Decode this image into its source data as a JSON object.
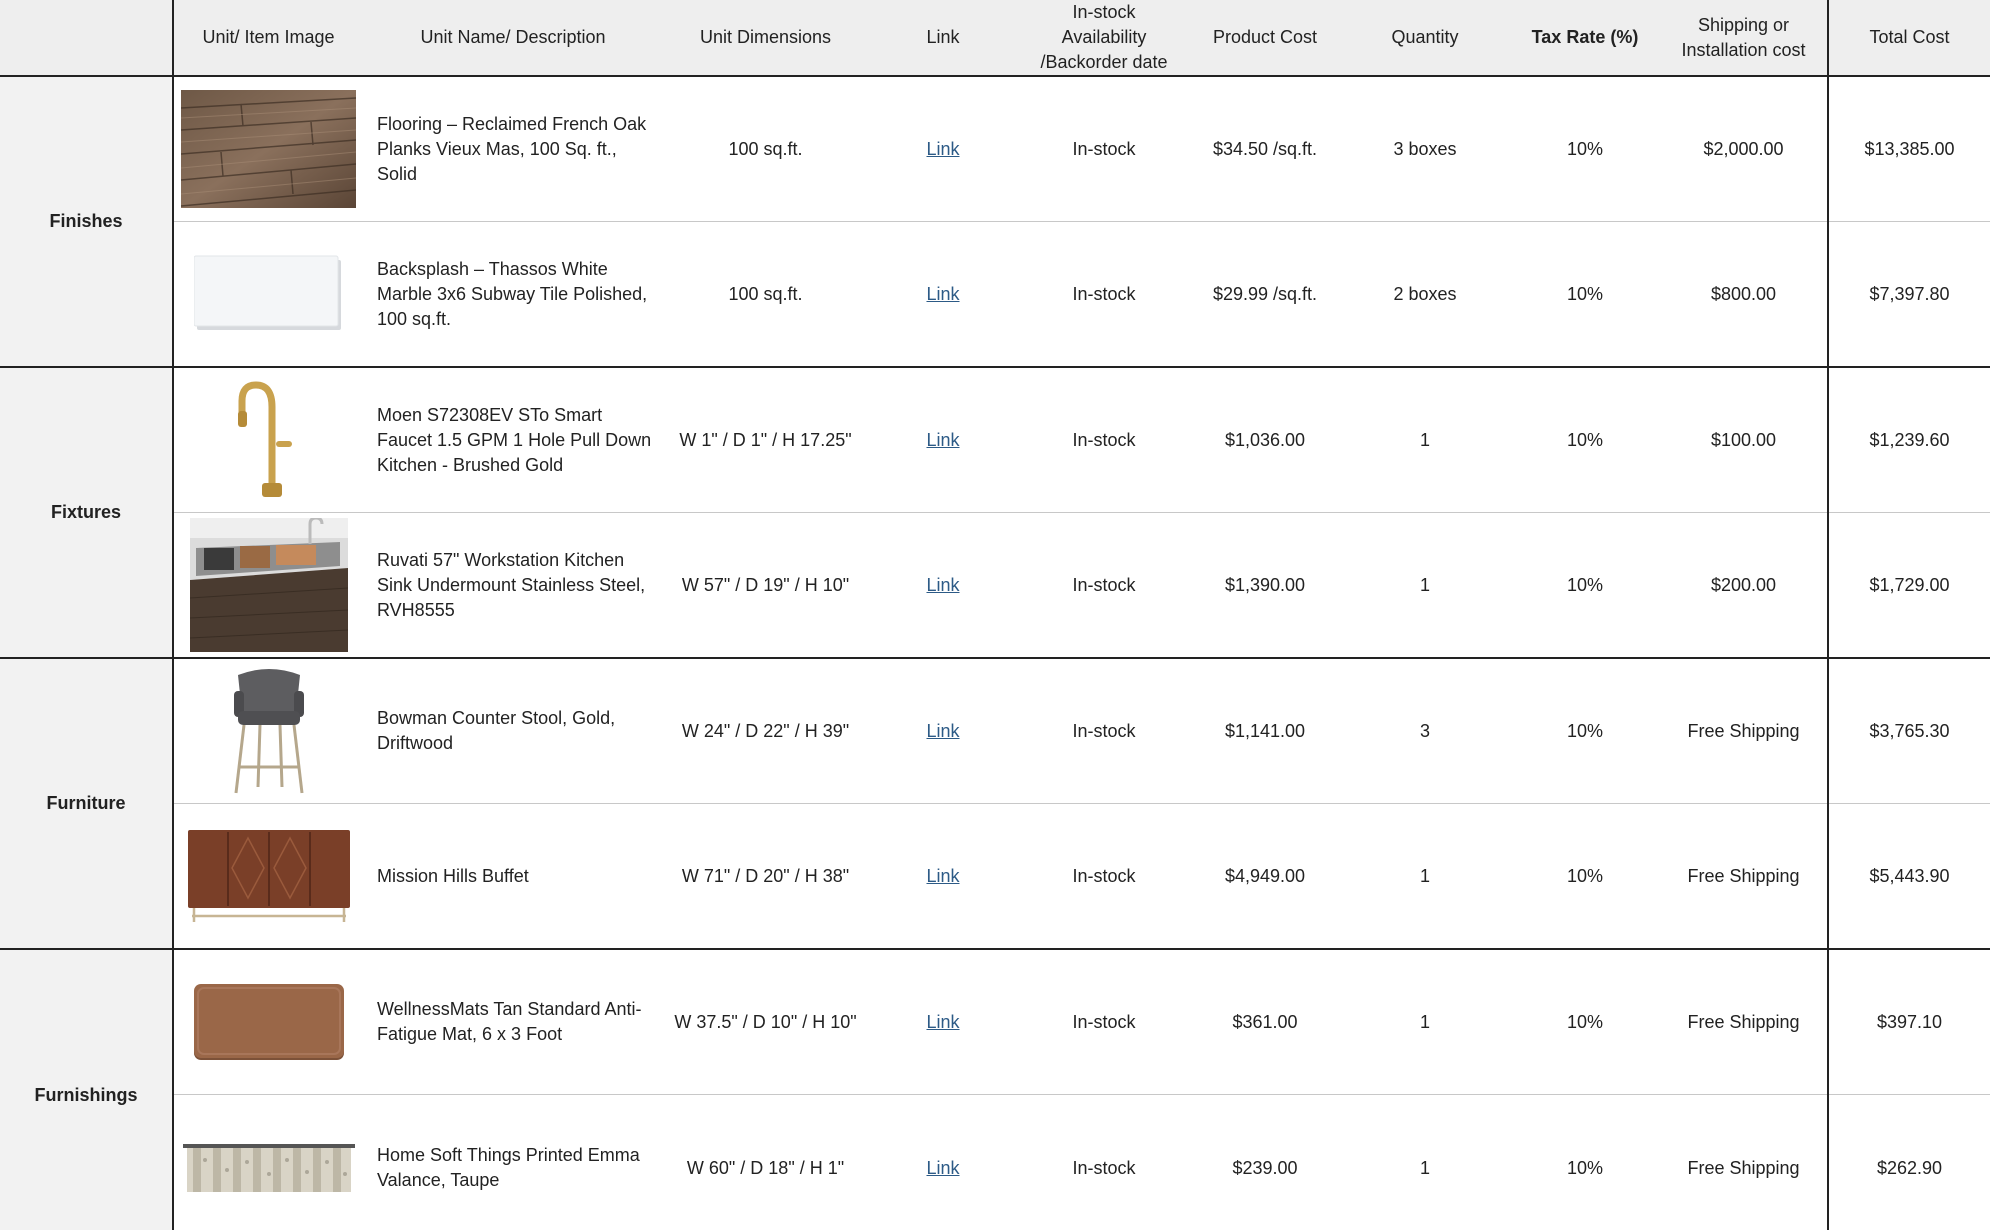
{
  "header": {
    "category": "",
    "image": "Unit/ Item Image",
    "description": "Unit Name/ Description",
    "dimensions": "Unit Dimensions",
    "link": "Link",
    "availability": "In-stock Availability /Backorder date",
    "availability_lines": [
      "In-stock",
      "Availability",
      "/Backorder date"
    ],
    "product_cost": "Product Cost",
    "quantity": "Quantity",
    "tax_rate": "Tax Rate (%)",
    "shipping_lines": [
      "Shipping or",
      "Installation cost"
    ],
    "total_cost": "Total Cost"
  },
  "categories": [
    "Finishes",
    "Fixtures",
    "Furniture",
    "Furnishings"
  ],
  "rows": [
    {
      "category": "Finishes",
      "image_icon": "wood-flooring-icon",
      "description": "Flooring – Reclaimed French Oak Planks Vieux Mas, 100 Sq. ft., Solid",
      "dimensions": "100 sq.ft.",
      "link": "Link",
      "availability": "In-stock",
      "product_cost": "$34.50 /sq.ft.",
      "quantity": "3 boxes",
      "tax_rate": "10%",
      "shipping": "$2,000.00",
      "total": "$13,385.00"
    },
    {
      "category": "Finishes",
      "image_icon": "marble-tile-icon",
      "description": "Backsplash – Thassos White Marble 3x6 Subway Tile Polished, 100 sq.ft.",
      "dimensions": "100 sq.ft.",
      "link": "Link",
      "availability": "In-stock",
      "product_cost": "$29.99 /sq.ft.",
      "quantity": "2 boxes",
      "tax_rate": "10%",
      "shipping": "$800.00",
      "total": "$7,397.80"
    },
    {
      "category": "Fixtures",
      "image_icon": "gold-faucet-icon",
      "description": "Moen S72308EV STo Smart Faucet 1.5 GPM 1 Hole Pull Down Kitchen - Brushed Gold",
      "dimensions": "W 1\" / D 1\" / H 17.25\"",
      "link": "Link",
      "availability": "In-stock",
      "product_cost": "$1,036.00",
      "quantity": "1",
      "tax_rate": "10%",
      "shipping": "$100.00",
      "total": "$1,239.60"
    },
    {
      "category": "Fixtures",
      "image_icon": "kitchen-sink-icon",
      "description": "Ruvati 57\" Workstation Kitchen Sink Undermount Stainless Steel, RVH8555",
      "dimensions": "W 57\" / D 19\" / H 10\"",
      "link": "Link",
      "availability": "In-stock",
      "product_cost": "$1,390.00",
      "quantity": "1",
      "tax_rate": "10%",
      "shipping": "$200.00",
      "total": "$1,729.00"
    },
    {
      "category": "Furniture",
      "image_icon": "counter-stool-icon",
      "description": "Bowman Counter Stool, Gold, Driftwood",
      "dimensions": "W 24\" / D 22\" / H 39\"",
      "link": "Link",
      "availability": "In-stock",
      "product_cost": "$1,141.00",
      "quantity": "3",
      "tax_rate": "10%",
      "shipping": "Free Shipping",
      "total": "$3,765.30"
    },
    {
      "category": "Furniture",
      "image_icon": "buffet-cabinet-icon",
      "description": "Mission Hills Buffet",
      "dimensions": "W 71\" / D 20\" / H 38\"",
      "link": "Link",
      "availability": "In-stock",
      "product_cost": "$4,949.00",
      "quantity": "1",
      "tax_rate": "10%",
      "shipping": "Free Shipping",
      "total": "$5,443.90"
    },
    {
      "category": "Furnishings",
      "image_icon": "floor-mat-icon",
      "description": "WellnessMats Tan Standard Anti-Fatigue Mat, 6 x 3 Foot",
      "dimensions": "W 37.5\" / D 10\" / H 10\"",
      "link": "Link",
      "availability": "In-stock",
      "product_cost": "$361.00",
      "quantity": "1",
      "tax_rate": "10%",
      "shipping": "Free Shipping",
      "total": "$397.10"
    },
    {
      "category": "Furnishings",
      "image_icon": "valance-curtain-icon",
      "description": "Home Soft Things Printed Emma Valance, Taupe",
      "dimensions": "W 60\" / D 18\" / H 1\"",
      "link": "Link",
      "availability": "In-stock",
      "product_cost": "$239.00",
      "quantity": "1",
      "tax_rate": "10%",
      "shipping": "Free Shipping",
      "total": "$262.90"
    }
  ]
}
